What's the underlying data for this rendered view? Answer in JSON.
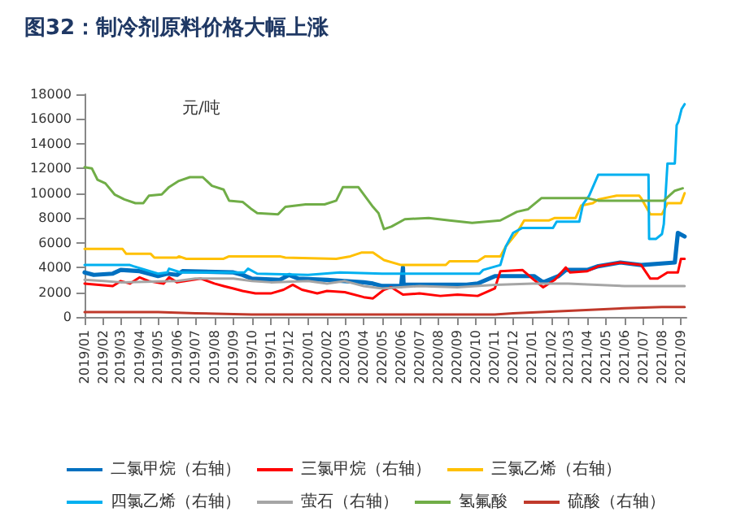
{
  "chart_data": {
    "type": "line",
    "title": "图32：制冷剂原料价格大幅上涨",
    "ylabel": "元/吨",
    "legend": "bottom",
    "line_style": "solid",
    "xlim": [
      "2019-01-01",
      "2021-09-10"
    ],
    "xticks": [
      {
        "value": "2019-01",
        "label": "2019/01"
      },
      {
        "value": "2019-02",
        "label": "2019/02"
      },
      {
        "value": "2019-03",
        "label": "2019/03"
      },
      {
        "value": "2019-04",
        "label": "2019/04"
      },
      {
        "value": "2019-05",
        "label": "2019/05"
      },
      {
        "value": "2019-06",
        "label": "2019/06"
      },
      {
        "value": "2019-07",
        "label": "2019/07"
      },
      {
        "value": "2019-08",
        "label": "2019/08"
      },
      {
        "value": "2019-09",
        "label": "2019/09"
      },
      {
        "value": "2019-10",
        "label": "2019/10"
      },
      {
        "value": "2019-11",
        "label": "2019/11"
      },
      {
        "value": "2019-12",
        "label": "2019/12"
      },
      {
        "value": "2020-01",
        "label": "2020/01"
      },
      {
        "value": "2020-02",
        "label": "2020/02"
      },
      {
        "value": "2020-03",
        "label": "2020/03"
      },
      {
        "value": "2020-04",
        "label": "2020/04"
      },
      {
        "value": "2020-05",
        "label": "2020/05"
      },
      {
        "value": "2020-06",
        "label": "2020/06"
      },
      {
        "value": "2020-07",
        "label": "2020/07"
      },
      {
        "value": "2020-08",
        "label": "2020/08"
      },
      {
        "value": "2020-09",
        "label": "2020/09"
      },
      {
        "value": "2020-10",
        "label": "2020/10"
      },
      {
        "value": "2020-11",
        "label": "2020/11"
      },
      {
        "value": "2020-12",
        "label": "2020/12"
      },
      {
        "value": "2021-01",
        "label": "2021/01"
      },
      {
        "value": "2021-02",
        "label": "2021/02"
      },
      {
        "value": "2021-03",
        "label": "2021/03"
      },
      {
        "value": "2021-04",
        "label": "2021/04"
      },
      {
        "value": "2021-05",
        "label": "2021/05"
      },
      {
        "value": "2021-06",
        "label": "2021/06"
      },
      {
        "value": "2021-07",
        "label": "2021/07"
      },
      {
        "value": "2021-08",
        "label": "2021/08"
      },
      {
        "value": "2021-09",
        "label": "2021/09"
      }
    ],
    "ylim": [
      0,
      18000
    ],
    "yticks": [
      0,
      2000,
      4000,
      6000,
      8000,
      10000,
      12000,
      14000,
      16000,
      18000
    ],
    "series": [
      {
        "name": "二氯甲烷（右轴）",
        "color": "#0070c0",
        "x": [
          "2019-01-01",
          "2019-01-16",
          "2019-02-16",
          "2019-03-01",
          "2019-04-01",
          "2019-05-01",
          "2019-05-16",
          "2019-06-01",
          "2019-06-10",
          "2019-09-01",
          "2019-09-16",
          "2019-10-01",
          "2019-11-16",
          "2019-12-01",
          "2019-12-16",
          "2020-02-01",
          "2020-03-01",
          "2020-04-01",
          "2020-04-16",
          "2020-05-01",
          "2020-06-01",
          "2020-06-04",
          "2020-06-05",
          "2020-09-16",
          "2020-10-04",
          "2020-11-01",
          "2021-01-04",
          "2021-01-19",
          "2021-02-13",
          "2021-02-25",
          "2021-04-01",
          "2021-04-19",
          "2021-05-25",
          "2021-06-28",
          "2021-08-22",
          "2021-08-27",
          "2021-09-07"
        ],
        "values": [
          3600,
          3400,
          3500,
          3800,
          3700,
          3300,
          3500,
          3400,
          3700,
          3600,
          3400,
          3100,
          3000,
          3400,
          3100,
          3000,
          2900,
          2800,
          2700,
          2500,
          2500,
          4000,
          2600,
          2600,
          2700,
          3300,
          3300,
          2800,
          3300,
          3800,
          3800,
          4100,
          4400,
          4200,
          4400,
          6800,
          6500
        ]
      },
      {
        "name": "三氯甲烷（右轴）",
        "color": "#ff0000",
        "x": [
          "2019-01-01",
          "2019-02-16",
          "2019-03-01",
          "2019-03-16",
          "2019-04-01",
          "2019-04-16",
          "2019-05-10",
          "2019-05-19",
          "2019-06-01",
          "2019-07-10",
          "2019-08-01",
          "2019-08-16",
          "2019-09-01",
          "2019-09-16",
          "2019-10-07",
          "2019-11-01",
          "2019-11-22",
          "2019-12-07",
          "2019-12-22",
          "2020-01-16",
          "2020-02-01",
          "2020-03-01",
          "2020-04-01",
          "2020-04-16",
          "2020-05-04",
          "2020-05-16",
          "2020-06-04",
          "2020-07-01",
          "2020-08-04",
          "2020-09-01",
          "2020-10-04",
          "2020-11-01",
          "2020-11-10",
          "2020-12-16",
          "2021-01-04",
          "2021-01-19",
          "2021-02-07",
          "2021-02-25",
          "2021-03-04",
          "2021-04-01",
          "2021-04-19",
          "2021-05-25",
          "2021-06-28",
          "2021-07-13",
          "2021-07-25",
          "2021-08-10",
          "2021-08-27",
          "2021-09-01",
          "2021-09-07"
        ],
        "values": [
          2700,
          2500,
          2900,
          2700,
          3200,
          2900,
          2700,
          3200,
          2800,
          3100,
          2700,
          2500,
          2300,
          2100,
          1900,
          1900,
          2200,
          2600,
          2200,
          1900,
          2100,
          2000,
          1600,
          1500,
          2200,
          2400,
          1800,
          1900,
          1700,
          1800,
          1700,
          2300,
          3700,
          3800,
          3000,
          2400,
          3000,
          4000,
          3600,
          3700,
          4100,
          4400,
          4200,
          3100,
          3100,
          3600,
          3600,
          4700,
          4700
        ]
      },
      {
        "name": "三氯乙烯（右轴）",
        "color": "#ffc000",
        "x": [
          "2019-01-01",
          "2019-03-04",
          "2019-03-10",
          "2019-04-19",
          "2019-04-25",
          "2019-06-01",
          "2019-06-04",
          "2019-06-16",
          "2019-08-16",
          "2019-08-25",
          "2019-11-16",
          "2019-11-25",
          "2020-02-16",
          "2020-03-10",
          "2020-03-28",
          "2020-04-16",
          "2020-05-04",
          "2020-06-01",
          "2020-08-13",
          "2020-08-19",
          "2020-10-04",
          "2020-10-16",
          "2020-11-10",
          "2020-11-19",
          "2020-12-07",
          "2020-12-19",
          "2021-01-28",
          "2021-02-07",
          "2021-03-13",
          "2021-03-22",
          "2021-04-10",
          "2021-04-19",
          "2021-05-19",
          "2021-06-25",
          "2021-06-28",
          "2021-07-13",
          "2021-08-01",
          "2021-08-10",
          "2021-09-01",
          "2021-09-07"
        ],
        "values": [
          5500,
          5500,
          5100,
          5100,
          4800,
          4800,
          4900,
          4700,
          4700,
          4900,
          4900,
          4800,
          4700,
          4900,
          5200,
          5200,
          4600,
          4200,
          4200,
          4500,
          4500,
          4900,
          4900,
          5700,
          6800,
          7800,
          7800,
          8000,
          8000,
          9000,
          9200,
          9500,
          9800,
          9800,
          9600,
          8300,
          8300,
          9200,
          9200,
          10000
        ]
      },
      {
        "name": "四氯乙烯（右轴）",
        "color": "#00b0f0",
        "x": [
          "2019-01-01",
          "2019-03-16",
          "2019-03-22",
          "2019-05-01",
          "2019-05-16",
          "2019-05-19",
          "2019-06-07",
          "2019-09-19",
          "2019-09-25",
          "2019-10-10",
          "2020-01-01",
          "2020-02-22",
          "2020-05-01",
          "2020-10-07",
          "2020-10-13",
          "2020-11-10",
          "2020-11-19",
          "2020-12-01",
          "2020-12-16",
          "2021-02-04",
          "2021-02-10",
          "2021-03-19",
          "2021-03-25",
          "2021-04-04",
          "2021-04-19",
          "2021-07-10",
          "2021-07-11",
          "2021-07-22",
          "2021-08-01",
          "2021-08-04",
          "2021-08-10",
          "2021-08-22",
          "2021-08-25",
          "2021-08-28",
          "2021-09-02",
          "2021-09-07"
        ],
        "values": [
          4200,
          4200,
          4100,
          3500,
          3600,
          3900,
          3600,
          3600,
          3900,
          3500,
          3400,
          3600,
          3500,
          3500,
          3800,
          4200,
          5700,
          6800,
          7200,
          7200,
          7700,
          7700,
          9100,
          9800,
          11500,
          11500,
          6300,
          6300,
          6700,
          7500,
          12400,
          12400,
          15500,
          15800,
          16800,
          17200
        ]
      },
      {
        "name": "萤石（右轴）",
        "color": "#a5a5a5",
        "x": [
          "2019-01-01",
          "2019-02-01",
          "2019-03-01",
          "2019-06-01",
          "2019-07-01",
          "2019-09-01",
          "2019-10-01",
          "2019-11-01",
          "2020-01-01",
          "2020-02-01",
          "2020-03-01",
          "2020-04-01",
          "2020-05-01",
          "2020-07-01",
          "2020-09-01",
          "2020-11-01",
          "2021-01-01",
          "2021-03-01",
          "2021-06-01",
          "2021-09-07"
        ],
        "values": [
          3000,
          2900,
          2800,
          2900,
          3100,
          3100,
          2900,
          2800,
          2900,
          2700,
          2900,
          2500,
          2300,
          2500,
          2400,
          2600,
          2700,
          2700,
          2500,
          2500
        ]
      },
      {
        "name": "氢氟酸",
        "color": "#70ad47",
        "x": [
          "2019-01-01",
          "2019-01-13",
          "2019-01-22",
          "2019-02-04",
          "2019-02-19",
          "2019-03-07",
          "2019-03-25",
          "2019-04-07",
          "2019-04-16",
          "2019-05-07",
          "2019-05-19",
          "2019-06-04",
          "2019-06-22",
          "2019-07-13",
          "2019-07-28",
          "2019-08-16",
          "2019-08-25",
          "2019-09-16",
          "2019-10-01",
          "2019-10-10",
          "2019-11-13",
          "2019-11-25",
          "2019-12-28",
          "2020-01-28",
          "2020-02-16",
          "2020-02-27",
          "2020-03-23",
          "2020-04-04",
          "2020-04-16",
          "2020-04-25",
          "2020-05-04",
          "2020-05-16",
          "2020-06-07",
          "2020-07-16",
          "2020-08-19",
          "2020-09-25",
          "2020-11-10",
          "2020-12-07",
          "2020-12-25",
          "2021-01-16",
          "2021-04-01",
          "2021-04-19",
          "2021-08-04",
          "2021-08-22",
          "2021-09-04"
        ],
        "values": [
          12100,
          12000,
          11100,
          10800,
          9900,
          9500,
          9200,
          9200,
          9800,
          9900,
          10500,
          11000,
          11300,
          11300,
          10600,
          10300,
          9400,
          9300,
          8700,
          8400,
          8300,
          8900,
          9100,
          9100,
          9400,
          10500,
          10500,
          9700,
          8900,
          8400,
          7100,
          7300,
          7900,
          8000,
          7800,
          7600,
          7800,
          8500,
          8700,
          9600,
          9600,
          9400,
          9400,
          10200,
          10400
        ]
      },
      {
        "name": "硫酸（右轴）",
        "color": "#c0392b",
        "x": [
          "2019-01-01",
          "2019-05-01",
          "2019-07-01",
          "2019-10-01",
          "2020-05-01",
          "2020-11-01",
          "2020-12-01",
          "2021-03-01",
          "2021-06-01",
          "2021-08-01",
          "2021-09-07"
        ],
        "values": [
          400,
          400,
          300,
          200,
          200,
          200,
          300,
          500,
          700,
          800,
          800
        ]
      }
    ]
  }
}
